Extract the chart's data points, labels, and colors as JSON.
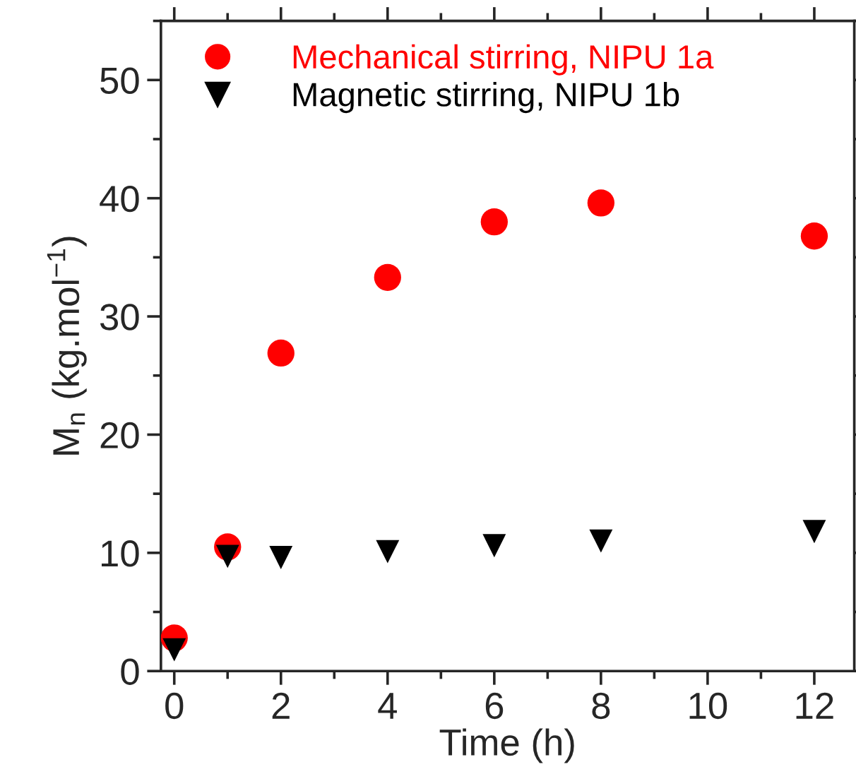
{
  "chart_data": {
    "type": "scatter",
    "xlabel": "Time (h)",
    "ylabel": "M$_{n}$ (kg.mol$^{−1}$)",
    "xlim": [
      -0.25,
      12.75
    ],
    "ylim": [
      0,
      55
    ],
    "xticks": [
      0,
      2,
      4,
      6,
      8,
      10,
      12
    ],
    "yticks": [
      0,
      10,
      20,
      30,
      40,
      50
    ],
    "grid": false,
    "legend": "top left",
    "series": [
      {
        "name": "Mechanical stirring, NIPU 1a",
        "color": "#ff0000",
        "marker": "circle",
        "x": [
          0,
          1,
          2,
          4,
          6,
          8,
          12
        ],
        "values": [
          2.8,
          10.5,
          26.9,
          33.3,
          38.0,
          39.6,
          36.8
        ]
      },
      {
        "name": "Magnetic stirring, NIPU 1b",
        "color": "#000000",
        "marker": "triangle",
        "x": [
          0,
          1,
          2,
          4,
          6,
          8,
          12
        ],
        "values": [
          1.8,
          9.7,
          9.6,
          10.1,
          10.6,
          11.0,
          11.8
        ]
      }
    ]
  }
}
